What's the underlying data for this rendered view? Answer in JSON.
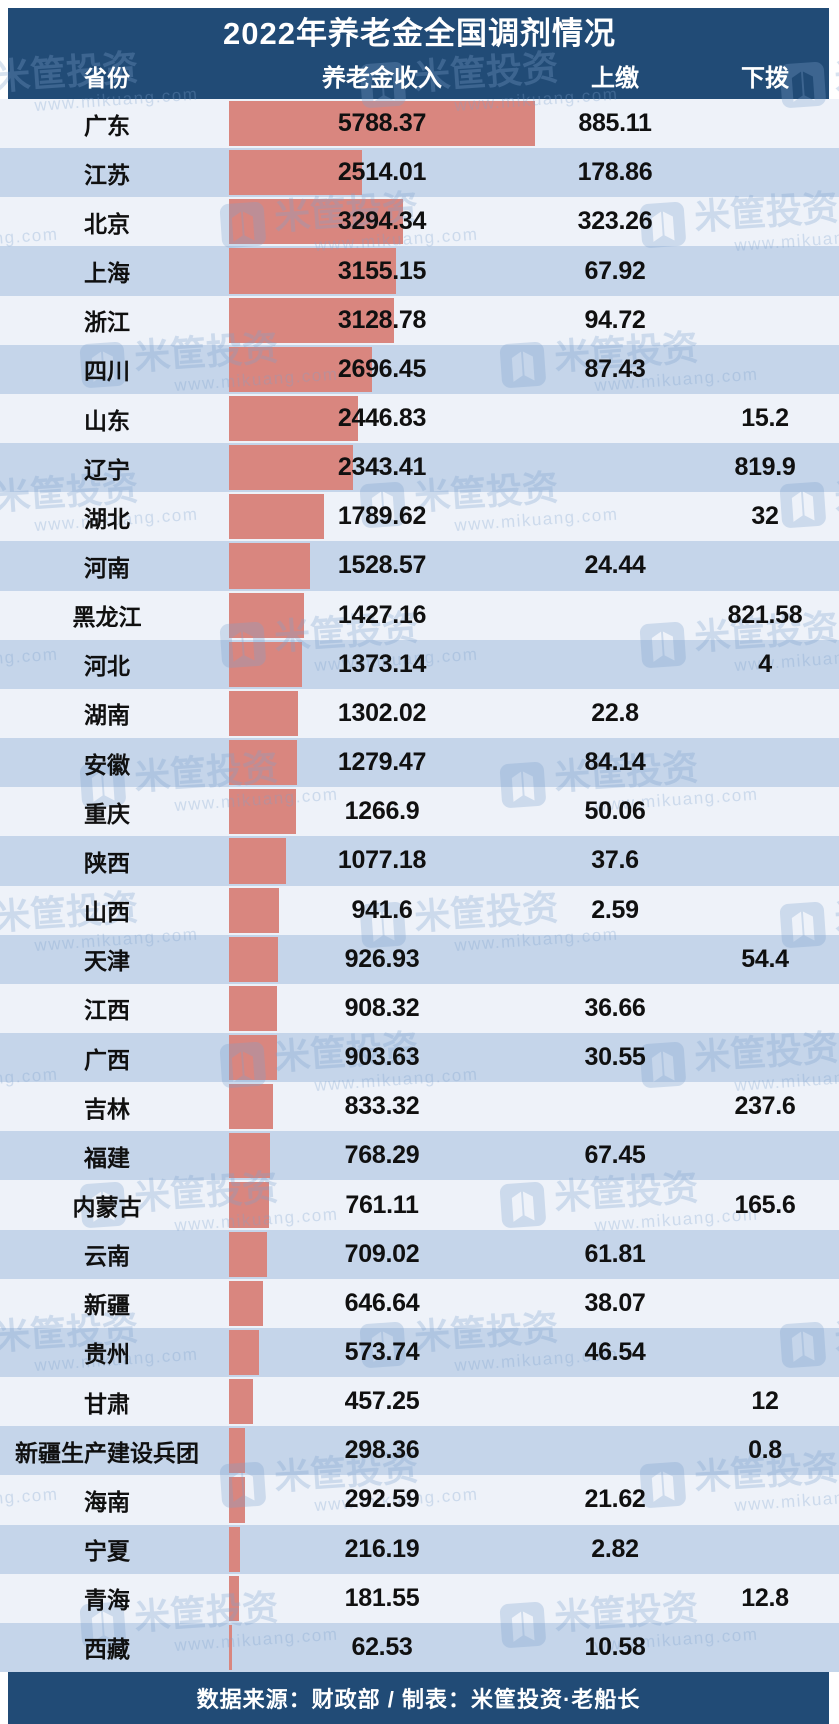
{
  "header": {
    "title": "2022年养老金全国调剂情况",
    "columns": {
      "province": "省份",
      "income": "养老金收入",
      "up": "上缴",
      "down": "下拨"
    }
  },
  "footer": {
    "credit": "数据来源：财政部 / 制表：米筐投资·老船长"
  },
  "watermark": {
    "name": "米筐投资",
    "url": "www.mikuang.com"
  },
  "colors": {
    "navy": "#214B76",
    "row_light": "#EEF2F9",
    "row_blue": "#C5D5EA",
    "bar": "#D9867F"
  },
  "rows": [
    {
      "province": "广东",
      "income": "5788.37",
      "up": "885.11",
      "down": ""
    },
    {
      "province": "江苏",
      "income": "2514.01",
      "up": "178.86",
      "down": ""
    },
    {
      "province": "北京",
      "income": "3294.34",
      "up": "323.26",
      "down": ""
    },
    {
      "province": "上海",
      "income": "3155.15",
      "up": "67.92",
      "down": ""
    },
    {
      "province": "浙江",
      "income": "3128.78",
      "up": "94.72",
      "down": ""
    },
    {
      "province": "四川",
      "income": "2696.45",
      "up": "87.43",
      "down": ""
    },
    {
      "province": "山东",
      "income": "2446.83",
      "up": "",
      "down": "15.2"
    },
    {
      "province": "辽宁",
      "income": "2343.41",
      "up": "",
      "down": "819.9"
    },
    {
      "province": "湖北",
      "income": "1789.62",
      "up": "",
      "down": "32"
    },
    {
      "province": "河南",
      "income": "1528.57",
      "up": "24.44",
      "down": ""
    },
    {
      "province": "黑龙江",
      "income": "1427.16",
      "up": "",
      "down": "821.58"
    },
    {
      "province": "河北",
      "income": "1373.14",
      "up": "",
      "down": "4"
    },
    {
      "province": "湖南",
      "income": "1302.02",
      "up": "22.8",
      "down": ""
    },
    {
      "province": "安徽",
      "income": "1279.47",
      "up": "84.14",
      "down": ""
    },
    {
      "province": "重庆",
      "income": "1266.9",
      "up": "50.06",
      "down": ""
    },
    {
      "province": "陕西",
      "income": "1077.18",
      "up": "37.6",
      "down": ""
    },
    {
      "province": "山西",
      "income": "941.6",
      "up": "2.59",
      "down": ""
    },
    {
      "province": "天津",
      "income": "926.93",
      "up": "",
      "down": "54.4"
    },
    {
      "province": "江西",
      "income": "908.32",
      "up": "36.66",
      "down": ""
    },
    {
      "province": "广西",
      "income": "903.63",
      "up": "30.55",
      "down": ""
    },
    {
      "province": "吉林",
      "income": "833.32",
      "up": "",
      "down": "237.6"
    },
    {
      "province": "福建",
      "income": "768.29",
      "up": "67.45",
      "down": ""
    },
    {
      "province": "内蒙古",
      "income": "761.11",
      "up": "",
      "down": "165.6"
    },
    {
      "province": "云南",
      "income": "709.02",
      "up": "61.81",
      "down": ""
    },
    {
      "province": "新疆",
      "income": "646.64",
      "up": "38.07",
      "down": ""
    },
    {
      "province": "贵州",
      "income": "573.74",
      "up": "46.54",
      "down": ""
    },
    {
      "province": "甘肃",
      "income": "457.25",
      "up": "",
      "down": "12"
    },
    {
      "province": "新疆生产建设兵团",
      "income": "298.36",
      "up": "",
      "down": "0.8"
    },
    {
      "province": "海南",
      "income": "292.59",
      "up": "21.62",
      "down": ""
    },
    {
      "province": "宁夏",
      "income": "216.19",
      "up": "2.82",
      "down": ""
    },
    {
      "province": "青海",
      "income": "181.55",
      "up": "",
      "down": "12.8"
    },
    {
      "province": "西藏",
      "income": "62.53",
      "up": "10.58",
      "down": ""
    }
  ],
  "chart_data": {
    "type": "bar",
    "orientation": "horizontal",
    "title": "2022年养老金全国调剂情况",
    "categories": [
      "广东",
      "江苏",
      "北京",
      "上海",
      "浙江",
      "四川",
      "山东",
      "辽宁",
      "湖北",
      "河南",
      "黑龙江",
      "河北",
      "湖南",
      "安徽",
      "重庆",
      "陕西",
      "山西",
      "天津",
      "江西",
      "广西",
      "吉林",
      "福建",
      "内蒙古",
      "云南",
      "新疆",
      "贵州",
      "甘肃",
      "新疆生产建设兵团",
      "海南",
      "宁夏",
      "青海",
      "西藏"
    ],
    "series": [
      {
        "name": "养老金收入",
        "values": [
          5788.37,
          2514.01,
          3294.34,
          3155.15,
          3128.78,
          2696.45,
          2446.83,
          2343.41,
          1789.62,
          1528.57,
          1427.16,
          1373.14,
          1302.02,
          1279.47,
          1266.9,
          1077.18,
          941.6,
          926.93,
          908.32,
          903.63,
          833.32,
          768.29,
          761.11,
          709.02,
          646.64,
          573.74,
          457.25,
          298.36,
          292.59,
          216.19,
          181.55,
          62.53
        ]
      },
      {
        "name": "上缴",
        "values": [
          885.11,
          178.86,
          323.26,
          67.92,
          94.72,
          87.43,
          null,
          null,
          null,
          24.44,
          null,
          null,
          22.8,
          84.14,
          50.06,
          37.6,
          2.59,
          null,
          36.66,
          30.55,
          null,
          67.45,
          null,
          61.81,
          38.07,
          46.54,
          null,
          null,
          21.62,
          2.82,
          null,
          10.58
        ]
      },
      {
        "name": "下拨",
        "values": [
          null,
          null,
          null,
          null,
          null,
          null,
          15.2,
          819.9,
          32,
          null,
          821.58,
          4,
          null,
          null,
          null,
          null,
          null,
          54.4,
          null,
          null,
          237.6,
          null,
          165.6,
          null,
          null,
          null,
          12,
          0.8,
          null,
          null,
          12.8,
          null
        ]
      }
    ],
    "xlim": [
      0,
      5788.37
    ],
    "legend_position": "none",
    "grid": false,
    "note": "bars drawn behind 养老金收入 column values"
  }
}
